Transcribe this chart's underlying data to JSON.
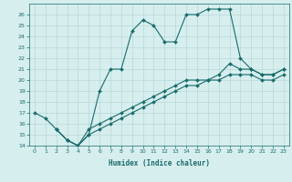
{
  "xlabel": "Humidex (Indice chaleur)",
  "ylabel": "",
  "background_color": "#d6eeee",
  "line_color": "#1a6b6b",
  "grid_color": "#b8d8d8",
  "xlim": [
    -0.5,
    23.5
  ],
  "ylim": [
    14,
    27
  ],
  "yticks": [
    14,
    15,
    16,
    17,
    18,
    19,
    20,
    21,
    22,
    23,
    24,
    25,
    26
  ],
  "xticks": [
    0,
    1,
    2,
    3,
    4,
    5,
    6,
    7,
    8,
    9,
    10,
    11,
    12,
    13,
    14,
    15,
    16,
    17,
    18,
    19,
    20,
    21,
    22,
    23
  ],
  "line1_x": [
    0,
    1,
    2,
    3,
    4,
    5,
    6,
    7,
    8,
    9,
    10,
    11,
    12,
    13,
    14,
    15,
    16,
    17,
    18,
    19,
    20,
    21,
    22,
    23
  ],
  "line1_y": [
    17,
    16.5,
    15.5,
    14.5,
    14,
    15,
    19,
    21,
    21,
    24.5,
    25.5,
    25,
    23.5,
    23.5,
    26,
    26,
    26.5,
    26.5,
    26.5,
    22,
    21,
    20.5,
    20.5,
    21
  ],
  "line2_full_x": [
    2,
    3,
    4,
    5,
    6,
    7,
    8,
    9,
    10,
    11,
    12,
    13,
    14,
    15,
    16,
    17,
    18,
    19,
    20,
    21,
    22,
    23
  ],
  "line2_full_y": [
    15.5,
    14.5,
    14,
    15.5,
    16,
    16.5,
    17,
    17.5,
    18,
    18.5,
    19,
    19.5,
    20,
    20,
    20,
    20.5,
    21.5,
    21.0,
    21.0,
    20.5,
    20.5,
    21
  ],
  "line3_full_x": [
    2,
    3,
    4,
    5,
    6,
    7,
    8,
    9,
    10,
    11,
    12,
    13,
    14,
    15,
    16,
    17,
    18,
    19,
    20,
    21,
    22,
    23
  ],
  "line3_full_y": [
    15.5,
    14.5,
    14,
    15,
    15.5,
    16,
    16.5,
    17,
    17.5,
    18,
    18.5,
    19,
    19.5,
    19.5,
    20,
    20,
    20.5,
    20.5,
    20.5,
    20.0,
    20.0,
    20.5
  ]
}
